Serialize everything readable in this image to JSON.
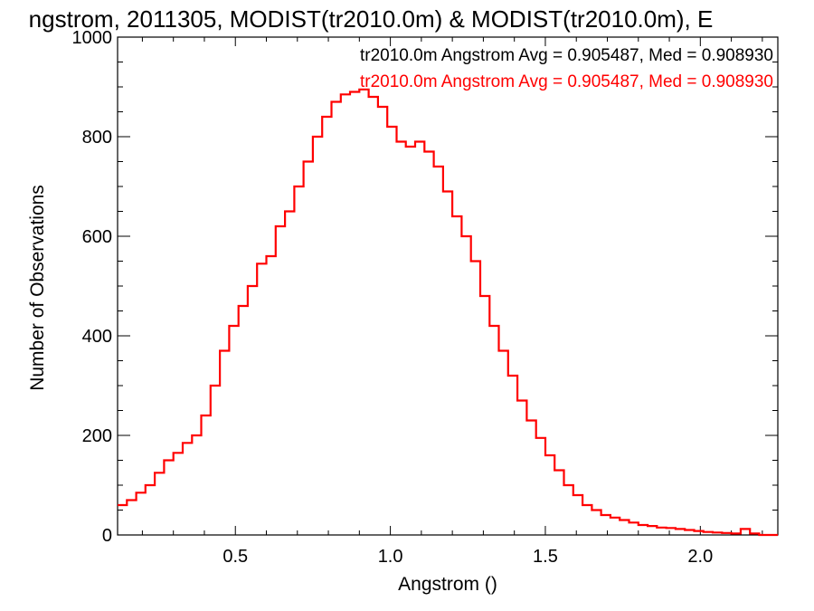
{
  "chart_data": {
    "type": "line",
    "step": true,
    "title": "ngstrom, 2011305, MODIST(tr2010.0m) & MODIST(tr2010.0m), E",
    "xlabel": "Angstrom ()",
    "ylabel": "Number of Observations",
    "xlim": [
      0.12,
      2.25
    ],
    "ylim": [
      0,
      1000
    ],
    "xticks": [
      0.5,
      1.0,
      1.5,
      2.0
    ],
    "xtick_labels": [
      "0.5",
      "1.0",
      "1.5",
      "2.0"
    ],
    "yticks": [
      0,
      200,
      400,
      600,
      800,
      1000
    ],
    "ytick_labels": [
      "0",
      "200",
      "400",
      "600",
      "800",
      "1000"
    ],
    "grid": false,
    "legend": [
      {
        "text": "tr2010.0m Angstrom Avg = 0.905487, Med = 0.908930",
        "color": "#000000"
      },
      {
        "text": "tr2010.0m Angstrom Avg = 0.905487, Med = 0.908930",
        "color": "#ff0000"
      }
    ],
    "series": [
      {
        "color": "#ff0000",
        "x": [
          0.12,
          0.15,
          0.18,
          0.21,
          0.24,
          0.27,
          0.3,
          0.33,
          0.36,
          0.39,
          0.42,
          0.45,
          0.48,
          0.51,
          0.54,
          0.57,
          0.6,
          0.63,
          0.66,
          0.69,
          0.72,
          0.75,
          0.78,
          0.81,
          0.84,
          0.87,
          0.9,
          0.93,
          0.96,
          0.99,
          1.02,
          1.05,
          1.08,
          1.11,
          1.14,
          1.17,
          1.2,
          1.23,
          1.26,
          1.29,
          1.32,
          1.35,
          1.38,
          1.41,
          1.44,
          1.47,
          1.5,
          1.53,
          1.56,
          1.59,
          1.62,
          1.65,
          1.68,
          1.71,
          1.74,
          1.77,
          1.8,
          1.83,
          1.86,
          1.89,
          1.92,
          1.95,
          1.98,
          2.01,
          2.04,
          2.07,
          2.1,
          2.13,
          2.16,
          2.19,
          2.22
        ],
        "y": [
          60,
          70,
          85,
          100,
          125,
          150,
          165,
          185,
          200,
          240,
          300,
          370,
          420,
          460,
          500,
          545,
          560,
          620,
          650,
          700,
          750,
          800,
          840,
          870,
          885,
          890,
          895,
          880,
          860,
          820,
          790,
          780,
          790,
          770,
          740,
          690,
          640,
          600,
          550,
          480,
          420,
          370,
          320,
          270,
          230,
          195,
          160,
          130,
          100,
          80,
          60,
          50,
          40,
          35,
          30,
          25,
          20,
          18,
          15,
          14,
          12,
          10,
          8,
          6,
          5,
          4,
          3,
          12,
          3,
          0,
          0
        ]
      }
    ]
  }
}
